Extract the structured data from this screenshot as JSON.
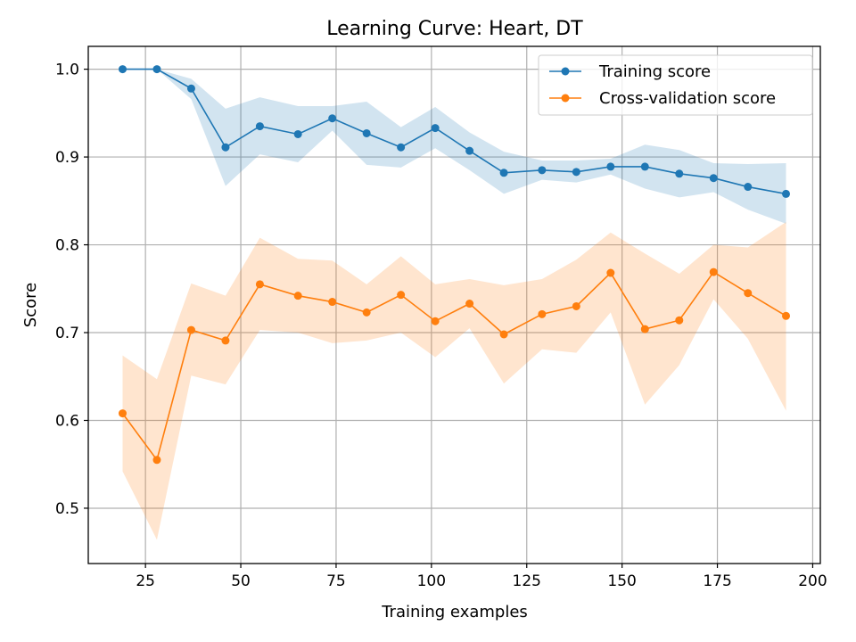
{
  "chart_data": {
    "type": "line",
    "title": "Learning Curve: Heart, DT",
    "xlabel": "Training examples",
    "ylabel": "Score",
    "xlim": [
      10,
      202
    ],
    "ylim": [
      0.437,
      1.026
    ],
    "xticks": [
      25,
      50,
      75,
      100,
      125,
      150,
      175,
      200
    ],
    "yticks": [
      0.5,
      0.6,
      0.7,
      0.8,
      0.9,
      1.0
    ],
    "xtick_labels": [
      "25",
      "50",
      "75",
      "100",
      "125",
      "150",
      "175",
      "200"
    ],
    "ytick_labels": [
      "0.5",
      "0.6",
      "0.7",
      "0.8",
      "0.9",
      "1.0"
    ],
    "grid": true,
    "legend_position": "top-right",
    "x": [
      19,
      28,
      37,
      46,
      55,
      65,
      74,
      83,
      92,
      101,
      110,
      119,
      129,
      138,
      147,
      156,
      165,
      174,
      183,
      193
    ],
    "series": [
      {
        "name": "Training score",
        "color": "#1f77b4",
        "values": [
          1.0,
          1.0,
          0.978,
          0.911,
          0.935,
          0.926,
          0.944,
          0.927,
          0.911,
          0.933,
          0.907,
          0.882,
          0.885,
          0.883,
          0.889,
          0.889,
          0.881,
          0.876,
          0.866,
          0.858
        ],
        "band_lower": [
          1.0,
          1.0,
          0.966,
          0.867,
          0.903,
          0.894,
          0.93,
          0.891,
          0.888,
          0.91,
          0.885,
          0.858,
          0.874,
          0.871,
          0.88,
          0.864,
          0.854,
          0.86,
          0.84,
          0.824
        ],
        "band_upper": [
          1.0,
          1.0,
          0.989,
          0.955,
          0.968,
          0.958,
          0.958,
          0.963,
          0.934,
          0.957,
          0.928,
          0.906,
          0.896,
          0.896,
          0.898,
          0.914,
          0.908,
          0.893,
          0.892,
          0.893
        ]
      },
      {
        "name": "Cross-validation score",
        "color": "#ff7f0e",
        "values": [
          0.608,
          0.555,
          0.703,
          0.691,
          0.755,
          0.742,
          0.735,
          0.723,
          0.743,
          0.713,
          0.733,
          0.698,
          0.721,
          0.73,
          0.768,
          0.704,
          0.714,
          0.769,
          0.745,
          0.719
        ],
        "band_lower": [
          0.542,
          0.464,
          0.651,
          0.641,
          0.703,
          0.7,
          0.688,
          0.691,
          0.7,
          0.672,
          0.705,
          0.642,
          0.681,
          0.677,
          0.723,
          0.618,
          0.663,
          0.738,
          0.693,
          0.611
        ],
        "band_upper": [
          0.674,
          0.647,
          0.756,
          0.742,
          0.808,
          0.784,
          0.782,
          0.755,
          0.787,
          0.755,
          0.761,
          0.754,
          0.761,
          0.783,
          0.814,
          0.79,
          0.767,
          0.8,
          0.797,
          0.826
        ]
      }
    ]
  }
}
